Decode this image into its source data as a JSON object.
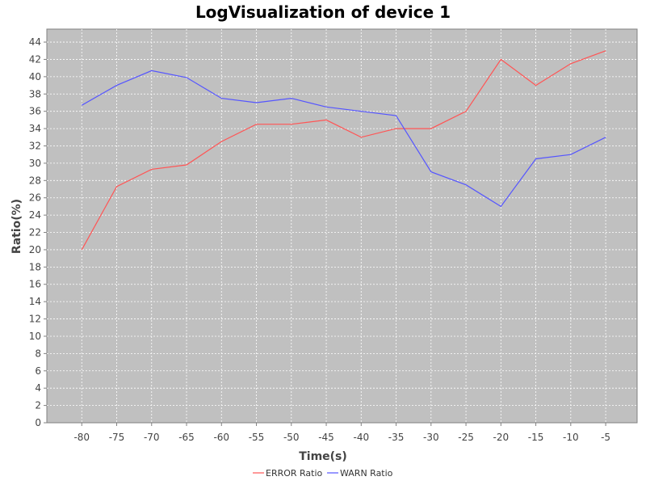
{
  "chart_data": {
    "type": "line",
    "title": "LogVisualization of device 1",
    "xlabel": "Time(s)",
    "ylabel": "Ratio(%)",
    "x": [
      -80,
      -75,
      -70,
      -65,
      -60,
      -55,
      -50,
      -45,
      -40,
      -35,
      -30,
      -25,
      -20,
      -15,
      -10,
      -5
    ],
    "x_tick_labels": [
      "-80",
      "-75",
      "-70",
      "-65",
      "-60",
      "-55",
      "-50",
      "-45",
      "-40",
      "-35",
      "-30",
      "-25",
      "-20",
      "-15",
      "-10",
      "-5"
    ],
    "xlim": [
      -85,
      -0.5
    ],
    "ylim": [
      0,
      45.5
    ],
    "y_ticks": [
      0,
      2,
      4,
      6,
      8,
      10,
      12,
      14,
      16,
      18,
      20,
      22,
      24,
      26,
      28,
      30,
      32,
      34,
      36,
      38,
      40,
      42,
      44
    ],
    "grid": true,
    "legend_position": "bottom",
    "plot_background": "#c0c0c0",
    "series": [
      {
        "name": "ERROR Ratio",
        "color": "#ff5555",
        "values": [
          20,
          27.3,
          29.3,
          29.8,
          32.5,
          34.5,
          34.5,
          35,
          33,
          34,
          34,
          36,
          42,
          39,
          41.5,
          43
        ]
      },
      {
        "name": "WARN Ratio",
        "color": "#5555ff",
        "values": [
          36.7,
          39,
          40.7,
          39.9,
          37.5,
          37,
          37.5,
          36.5,
          36,
          35.5,
          29,
          27.5,
          25,
          30.5,
          31,
          33
        ]
      }
    ]
  }
}
